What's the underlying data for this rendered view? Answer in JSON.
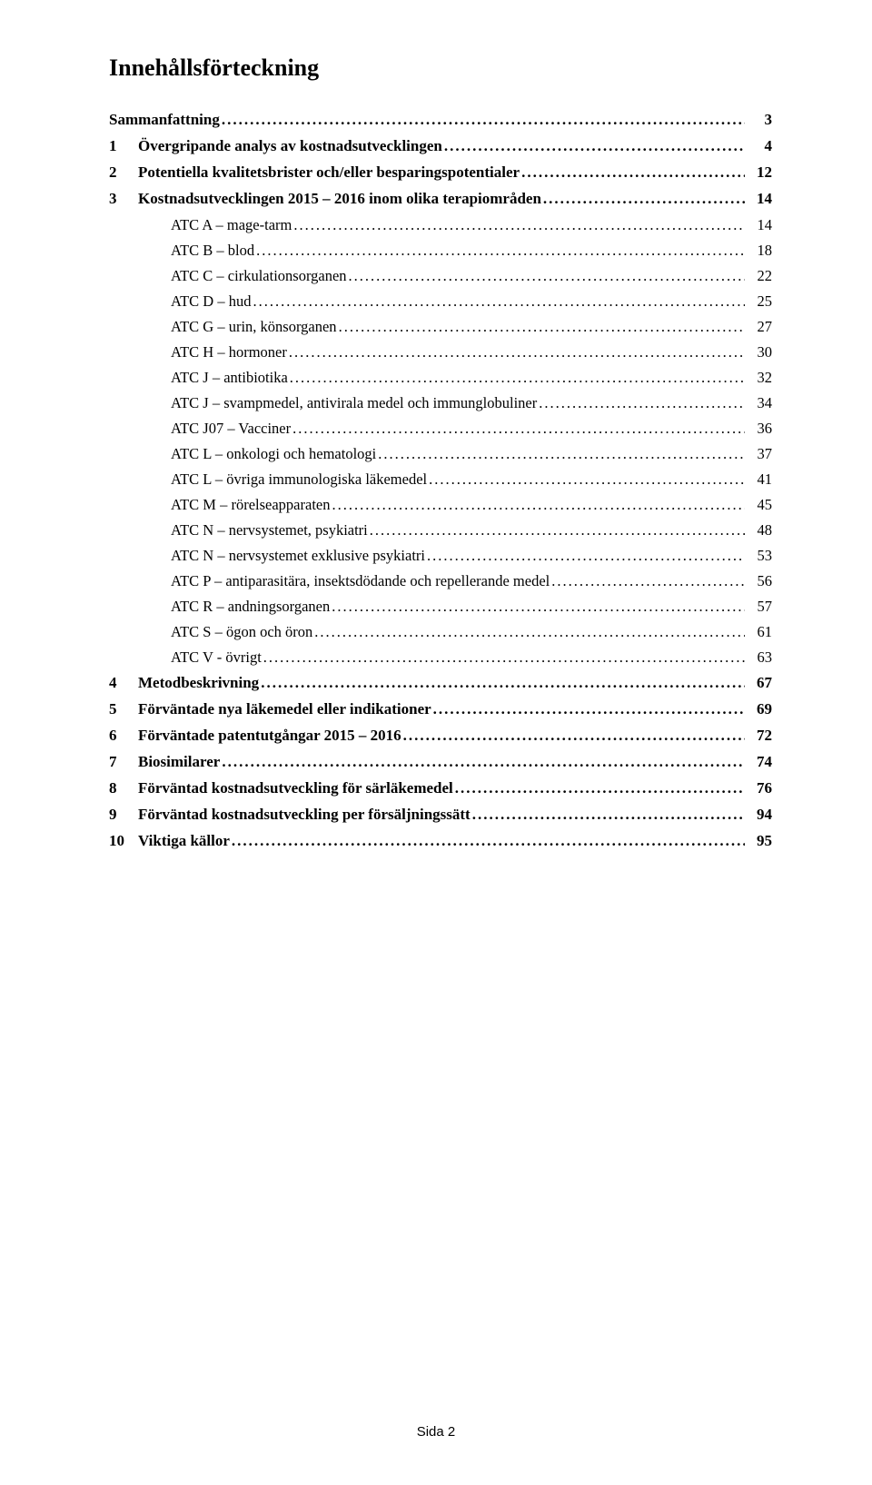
{
  "title": "Innehållsförteckning",
  "entries": [
    {
      "level": 0,
      "num": "",
      "label": "Sammanfattning",
      "page": "3"
    },
    {
      "level": 1,
      "num": "1",
      "label": "Övergripande analys av kostnadsutvecklingen",
      "page": "4"
    },
    {
      "level": 1,
      "num": "2",
      "label": "Potentiella kvalitetsbrister och/eller besparingspotentialer",
      "page": "12"
    },
    {
      "level": 1,
      "num": "3",
      "label": "Kostnadsutvecklingen 2015 – 2016 inom olika terapiområden",
      "page": "14"
    },
    {
      "level": 2,
      "num": "",
      "label": "ATC A – mage-tarm",
      "page": "14"
    },
    {
      "level": 2,
      "num": "",
      "label": "ATC B – blod",
      "page": "18"
    },
    {
      "level": 2,
      "num": "",
      "label": "ATC C – cirkulationsorganen",
      "page": "22"
    },
    {
      "level": 2,
      "num": "",
      "label": "ATC D – hud",
      "page": "25"
    },
    {
      "level": 2,
      "num": "",
      "label": "ATC G – urin, könsorganen",
      "page": "27"
    },
    {
      "level": 2,
      "num": "",
      "label": "ATC H – hormoner",
      "page": "30"
    },
    {
      "level": 2,
      "num": "",
      "label": "ATC J – antibiotika",
      "page": "32"
    },
    {
      "level": 2,
      "num": "",
      "label": "ATC J – svampmedel, antivirala medel och immunglobuliner",
      "page": "34"
    },
    {
      "level": 2,
      "num": "",
      "label": "ATC J07 – Vacciner",
      "page": "36"
    },
    {
      "level": 2,
      "num": "",
      "label": "ATC L – onkologi och hematologi",
      "page": "37"
    },
    {
      "level": 2,
      "num": "",
      "label": "ATC L – övriga immunologiska läkemedel",
      "page": "41"
    },
    {
      "level": 2,
      "num": "",
      "label": "ATC M – rörelseapparaten",
      "page": "45"
    },
    {
      "level": 2,
      "num": "",
      "label": "ATC N – nervsystemet, psykiatri",
      "page": "48"
    },
    {
      "level": 2,
      "num": "",
      "label": "ATC N – nervsystemet exklusive psykiatri",
      "page": "53"
    },
    {
      "level": 2,
      "num": "",
      "label": "ATC P – antiparasitära, insektsdödande och repellerande medel",
      "page": "56"
    },
    {
      "level": 2,
      "num": "",
      "label": "ATC R – andningsorganen",
      "page": "57"
    },
    {
      "level": 2,
      "num": "",
      "label": "ATC S – ögon och öron",
      "page": "61"
    },
    {
      "level": 2,
      "num": "",
      "label": "ATC V - övrigt",
      "page": "63"
    },
    {
      "level": 1,
      "num": "4",
      "label": "Metodbeskrivning",
      "page": "67"
    },
    {
      "level": 1,
      "num": "5",
      "label": "Förväntade nya läkemedel eller indikationer",
      "page": "69"
    },
    {
      "level": 1,
      "num": "6",
      "label": "Förväntade patentutgångar 2015 – 2016",
      "page": "72"
    },
    {
      "level": 1,
      "num": "7",
      "label": "Biosimilarer",
      "page": "74"
    },
    {
      "level": 1,
      "num": "8",
      "label": "Förväntad kostnadsutveckling för särläkemedel",
      "page": "76"
    },
    {
      "level": 1,
      "num": "9",
      "label": "Förväntad kostnadsutveckling per försäljningssätt",
      "page": "94"
    },
    {
      "level": 1,
      "num": "10",
      "label": "Viktiga källor",
      "page": "95"
    }
  ],
  "footer": "Sida 2"
}
